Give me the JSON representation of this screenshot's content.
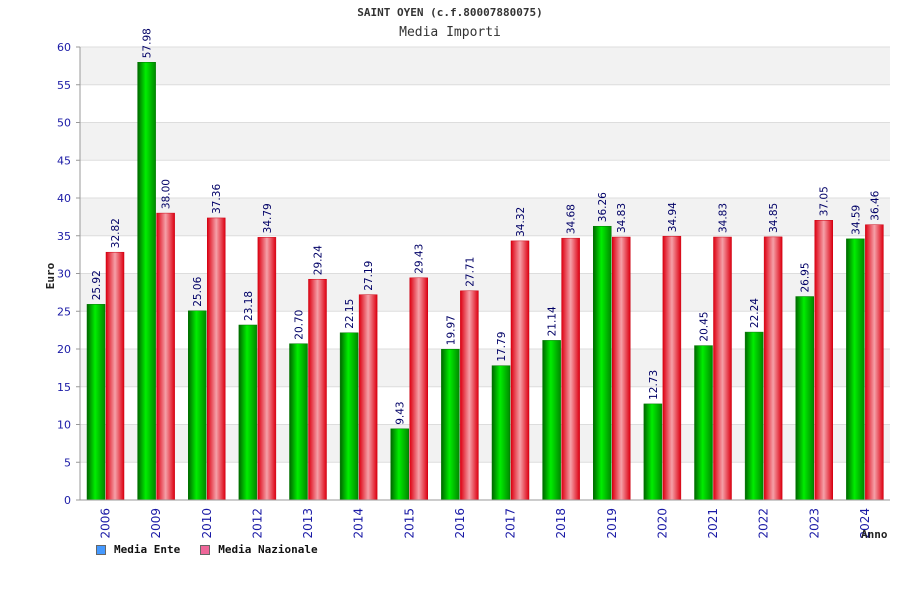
{
  "colors": {
    "ente": "#00cc00",
    "nazionale": "#ee1122",
    "legend_ente": "#4499ff",
    "legend_nazionale": "#ee6699",
    "tick_text": "#1a1aa6",
    "value_text": "#000066",
    "band": "#f2f2f2",
    "grid": "#dddddd"
  },
  "chart_data": {
    "type": "bar",
    "title": "SAINT OYEN (c.f.80007880075)",
    "subtitle": "Media Importi",
    "xlabel": "Anno",
    "ylabel": "Euro",
    "ylim": [
      0,
      60
    ],
    "yticks": [
      0,
      5,
      10,
      15,
      20,
      25,
      30,
      35,
      40,
      45,
      50,
      55,
      60
    ],
    "grid": true,
    "legend_position": "bottom-left",
    "categories": [
      "2006",
      "2009",
      "2010",
      "2012",
      "2013",
      "2014",
      "2015",
      "2016",
      "2017",
      "2018",
      "2019",
      "2020",
      "2021",
      "2022",
      "2023",
      "2024"
    ],
    "series": [
      {
        "name": "Media Ente",
        "values": [
          25.92,
          57.98,
          25.06,
          23.18,
          20.7,
          22.15,
          9.43,
          19.97,
          17.79,
          21.14,
          36.26,
          12.73,
          20.45,
          22.24,
          26.95,
          34.59
        ],
        "labels": [
          "25.92",
          "57.98",
          "25.06",
          "23.18",
          "20.70",
          "22.15",
          "9.43",
          "19.97",
          "17.79",
          "21.14",
          "36.26",
          "12.73",
          "20.45",
          "22.24",
          "26.95",
          "34.59"
        ]
      },
      {
        "name": "Media Nazionale",
        "values": [
          32.82,
          38.0,
          37.36,
          34.79,
          29.24,
          27.19,
          29.43,
          27.71,
          34.32,
          34.68,
          34.83,
          34.94,
          34.83,
          34.85,
          37.05,
          36.46
        ],
        "labels": [
          "32.82",
          "38.00",
          "37.36",
          "34.79",
          "29.24",
          "27.19",
          "29.43",
          "27.71",
          "34.32",
          "34.68",
          "34.83",
          "34.94",
          "34.83",
          "34.85",
          "37.05",
          "36.46"
        ]
      }
    ]
  }
}
